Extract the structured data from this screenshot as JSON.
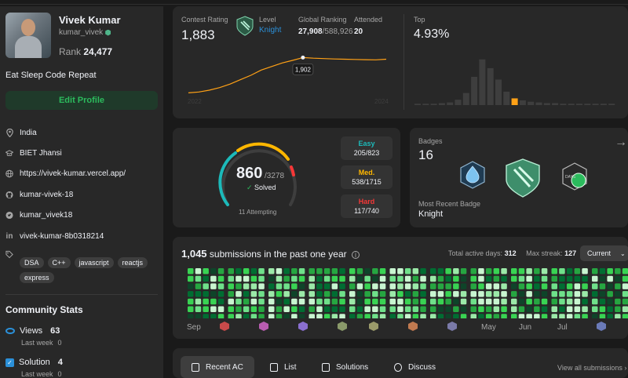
{
  "profile": {
    "name": "Vivek Kumar",
    "username": "kumar_vivek",
    "rank_label": "Rank",
    "rank_value": "24,477",
    "bio": "Eat Sleep Code Repeat",
    "edit_label": "Edit Profile",
    "info": [
      {
        "icon": "location-icon",
        "text": "India"
      },
      {
        "icon": "school-icon",
        "text": "BIET Jhansi"
      },
      {
        "icon": "globe-icon",
        "text": "https://vivek-kumar.vercel.app/"
      },
      {
        "icon": "github-icon",
        "text": "kumar-vivek-18"
      },
      {
        "icon": "twitter-icon",
        "text": "kumar_vivek18"
      },
      {
        "icon": "linkedin-icon",
        "text": "vivek-kumar-8b0318214"
      }
    ],
    "skills": [
      "DSA",
      "C++",
      "javascript",
      "reactjs",
      "express"
    ]
  },
  "community": {
    "title": "Community Stats",
    "views_label": "Views",
    "views_value": "63",
    "views_sub_label": "Last week",
    "views_sub_value": "0",
    "solution_label": "Solution",
    "solution_value": "4",
    "solution_sub_label": "Last week",
    "solution_sub_value": "0"
  },
  "contest": {
    "rating_label": "Contest Rating",
    "rating_value": "1,883",
    "level_label": "Level",
    "level_value": "Knight",
    "global_label": "Global Ranking",
    "global_value": "27,908",
    "global_total": "/588,926",
    "attended_label": "Attended",
    "attended_value": "20",
    "top_label": "Top",
    "top_value": "4.93%",
    "tooltip": "1,902",
    "year_start": "2022",
    "year_end": "2024"
  },
  "solved": {
    "count": "860",
    "total": "/3278",
    "solved_label": "Solved",
    "attempting": "11 Attempting",
    "easy_label": "Easy",
    "easy_value": "205/823",
    "med_label": "Med.",
    "med_value": "538/1715",
    "hard_label": "Hard",
    "hard_value": "117/740"
  },
  "badges": {
    "label": "Badges",
    "count": "16",
    "recent_label": "Most Recent Badge",
    "recent_value": "Knight"
  },
  "submissions": {
    "count": "1,045",
    "text": "submissions in the past one year",
    "active_label": "Total active days:",
    "active_value": "312",
    "streak_label": "Max streak:",
    "streak_value": "127",
    "select_value": "Current",
    "months": [
      "Sep",
      "May",
      "Jun",
      "Jul"
    ]
  },
  "tabs": {
    "recent": "Recent AC",
    "list": "List",
    "solutions": "Solutions",
    "discuss": "Discuss",
    "view_all": "View all submissions"
  },
  "colors": {
    "accent_green": "#2cbb5d",
    "easy": "#1cbaba",
    "medium": "#ffb700",
    "hard": "#f63737",
    "rating_line": "#ffa116"
  },
  "chart_data": [
    {
      "type": "line",
      "title": "Contest Rating",
      "x": [
        "2022",
        "",
        "",
        "",
        "",
        "",
        "",
        "",
        "",
        "",
        "",
        "",
        "",
        "",
        "",
        "",
        "",
        "",
        "",
        "2024"
      ],
      "series": [
        {
          "values": [
            1500,
            1510,
            1530,
            1560,
            1600,
            1650,
            1700,
            1760,
            1800,
            1840,
            1870,
            1902,
            1895,
            1890,
            1886,
            1883,
            1880,
            1878,
            1876,
            1883
          ]
        }
      ],
      "annotations": [
        "1,902"
      ]
    },
    {
      "type": "bar",
      "title": "Top",
      "values": [
        2,
        2,
        2,
        3,
        4,
        8,
        18,
        42,
        68,
        55,
        38,
        20,
        10,
        7,
        5,
        4,
        3,
        3,
        2,
        2,
        2,
        2,
        2,
        2,
        2
      ],
      "highlight_index": 12
    }
  ]
}
